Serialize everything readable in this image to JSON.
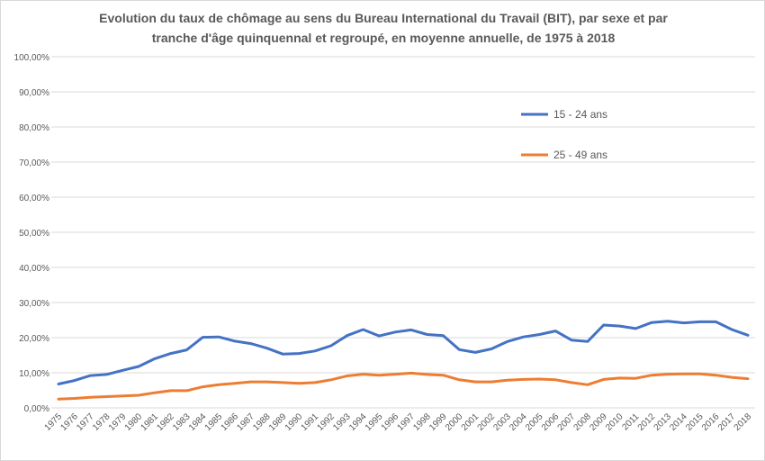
{
  "chart_data": {
    "type": "line",
    "title": [
      "Evolution  du taux de chômage au sens du Bureau  International  du Travail (BIT), par sexe et par",
      "tranche d'âge quinquennal  et regroupé, en moyenne annuelle, de 1975 à 2018"
    ],
    "xlabel": "",
    "ylabel": "",
    "ylim": [
      0,
      100
    ],
    "yticks": [
      "0,00%",
      "10,00%",
      "20,00%",
      "30,00%",
      "40,00%",
      "50,00%",
      "60,00%",
      "70,00%",
      "80,00%",
      "90,00%",
      "100,00%"
    ],
    "grid": true,
    "legend_position": "top-right",
    "x": [
      "1975",
      "1976",
      "1977",
      "1978",
      "1979",
      "1980",
      "1981",
      "1982",
      "1983",
      "1984",
      "1985",
      "1986",
      "1987",
      "1988",
      "1989",
      "1990",
      "1991",
      "1992",
      "1993",
      "1994",
      "1995",
      "1996",
      "1997",
      "1998",
      "1999",
      "2000",
      "2001",
      "2002",
      "2003",
      "2004",
      "2005",
      "2006",
      "2007",
      "2008",
      "2009",
      "2010",
      "2011",
      "2012",
      "2013",
      "2014",
      "2015",
      "2016",
      "2017",
      "2018"
    ],
    "series": [
      {
        "name": "15 - 24 ans",
        "color": "#4472c4",
        "values": [
          6.8,
          7.8,
          9.2,
          9.5,
          10.7,
          11.8,
          14.0,
          15.5,
          16.5,
          20.1,
          20.2,
          19.0,
          18.3,
          17.0,
          15.3,
          15.5,
          16.2,
          17.7,
          20.6,
          22.3,
          20.5,
          21.6,
          22.2,
          20.9,
          20.6,
          16.6,
          15.8,
          16.8,
          18.9,
          20.2,
          20.9,
          21.9,
          19.3,
          18.9,
          23.6,
          23.3,
          22.6,
          24.3,
          24.7,
          24.2,
          24.5,
          24.5,
          22.3,
          20.7
        ]
      },
      {
        "name": "25 - 49 ans",
        "color": "#ed7d31",
        "values": [
          2.5,
          2.7,
          3.0,
          3.2,
          3.4,
          3.6,
          4.3,
          4.9,
          4.9,
          6.0,
          6.6,
          7.0,
          7.4,
          7.4,
          7.2,
          7.0,
          7.2,
          8.0,
          9.1,
          9.6,
          9.3,
          9.6,
          9.9,
          9.5,
          9.3,
          8.0,
          7.4,
          7.4,
          7.9,
          8.1,
          8.2,
          8.0,
          7.2,
          6.6,
          8.1,
          8.5,
          8.4,
          9.3,
          9.6,
          9.7,
          9.7,
          9.3,
          8.7,
          8.3
        ]
      }
    ]
  }
}
